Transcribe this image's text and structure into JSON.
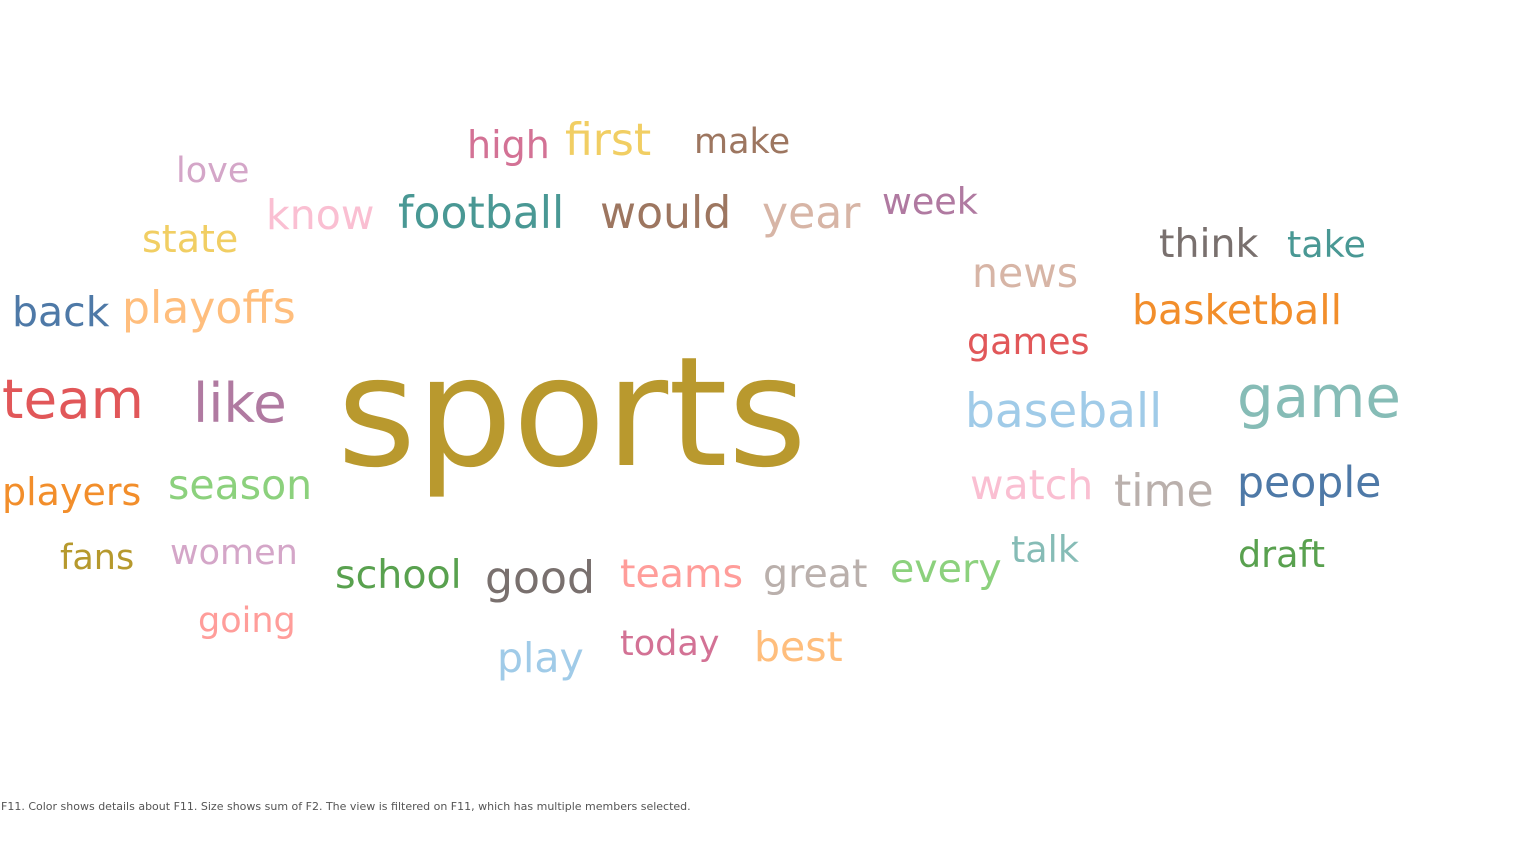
{
  "chart_data": {
    "type": "wordcloud",
    "words": [
      {
        "text": "sports",
        "size": 100,
        "color": "#b9992e"
      },
      {
        "text": "game",
        "size": 38,
        "color": "#86bcb6"
      },
      {
        "text": "team",
        "size": 36,
        "color": "#e15759"
      },
      {
        "text": "like",
        "size": 36,
        "color": "#b07aa1"
      },
      {
        "text": "baseball",
        "size": 31,
        "color": "#a0cbe8"
      },
      {
        "text": "football",
        "size": 29,
        "color": "#499894"
      },
      {
        "text": "would",
        "size": 29,
        "color": "#9d7660"
      },
      {
        "text": "year",
        "size": 29,
        "color": "#d7b5a6"
      },
      {
        "text": "playoffs",
        "size": 29,
        "color": "#ffbe7d"
      },
      {
        "text": "time",
        "size": 29,
        "color": "#bab0ac"
      },
      {
        "text": "good",
        "size": 29,
        "color": "#79706e"
      },
      {
        "text": "first",
        "size": 29,
        "color": "#f1ce63"
      },
      {
        "text": "people",
        "size": 28,
        "color": "#4e79a7"
      },
      {
        "text": "basketball",
        "size": 27,
        "color": "#f28e2b"
      },
      {
        "text": "news",
        "size": 27,
        "color": "#d7b5a6"
      },
      {
        "text": "back",
        "size": 27,
        "color": "#4e79a7"
      },
      {
        "text": "know",
        "size": 27,
        "color": "#fabfd2"
      },
      {
        "text": "season",
        "size": 27,
        "color": "#8cd17d"
      },
      {
        "text": "watch",
        "size": 27,
        "color": "#fabfd2"
      },
      {
        "text": "play",
        "size": 27,
        "color": "#a0cbe8"
      },
      {
        "text": "best",
        "size": 27,
        "color": "#ffbe7d"
      },
      {
        "text": "teams",
        "size": 26,
        "color": "#ff9d9a"
      },
      {
        "text": "great",
        "size": 26,
        "color": "#bab0ac"
      },
      {
        "text": "every",
        "size": 26,
        "color": "#8cd17d"
      },
      {
        "text": "school",
        "size": 26,
        "color": "#59a14f"
      },
      {
        "text": "think",
        "size": 26,
        "color": "#79706e"
      },
      {
        "text": "players",
        "size": 25,
        "color": "#f28e2b"
      },
      {
        "text": "state",
        "size": 25,
        "color": "#f1ce63"
      },
      {
        "text": "high",
        "size": 25,
        "color": "#d37295"
      },
      {
        "text": "week",
        "size": 24,
        "color": "#b07aa1"
      },
      {
        "text": "take",
        "size": 24,
        "color": "#499894"
      },
      {
        "text": "games",
        "size": 24,
        "color": "#e15759"
      },
      {
        "text": "draft",
        "size": 24,
        "color": "#59a14f"
      },
      {
        "text": "talk",
        "size": 24,
        "color": "#86bcb6"
      },
      {
        "text": "make",
        "size": 23,
        "color": "#9d7660"
      },
      {
        "text": "love",
        "size": 23,
        "color": "#d4a6c8"
      },
      {
        "text": "fans",
        "size": 23,
        "color": "#b6992d"
      },
      {
        "text": "women",
        "size": 23,
        "color": "#d4a6c8"
      },
      {
        "text": "going",
        "size": 23,
        "color": "#ff9d9a"
      },
      {
        "text": "today",
        "size": 23,
        "color": "#d37295"
      }
    ],
    "caption": "F11.  Color shows details about F11.  Size shows sum of F2. The view is filtered on F11, which has multiple members selected."
  }
}
